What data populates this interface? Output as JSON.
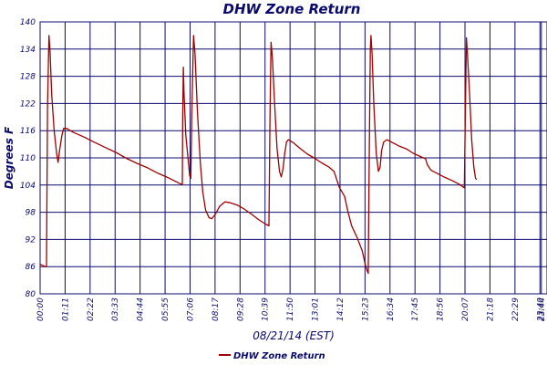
{
  "chart_data": {
    "type": "line",
    "title": "DHW Zone Return",
    "xlabel": "08/21/14 (EST)",
    "ylabel": "Degrees F",
    "ylim": [
      80,
      140
    ],
    "yticks": [
      80,
      86,
      92,
      98,
      104,
      110,
      116,
      122,
      128,
      134,
      140
    ],
    "xlim": [
      0,
      1440
    ],
    "xticks": [
      {
        "label": "00:00",
        "minutes": 0
      },
      {
        "label": "01:11",
        "minutes": 71
      },
      {
        "label": "02:22",
        "minutes": 142
      },
      {
        "label": "03:33",
        "minutes": 213
      },
      {
        "label": "04:44",
        "minutes": 284
      },
      {
        "label": "05:55",
        "minutes": 355
      },
      {
        "label": "07:06",
        "minutes": 426
      },
      {
        "label": "08:17",
        "minutes": 497
      },
      {
        "label": "09:28",
        "minutes": 568
      },
      {
        "label": "10:39",
        "minutes": 639
      },
      {
        "label": "11:50",
        "minutes": 710
      },
      {
        "label": "13:01",
        "minutes": 781
      },
      {
        "label": "14:12",
        "minutes": 852
      },
      {
        "label": "15:23",
        "minutes": 923
      },
      {
        "label": "16:34",
        "minutes": 994
      },
      {
        "label": "17:45",
        "minutes": 1065
      },
      {
        "label": "18:56",
        "minutes": 1136
      },
      {
        "label": "20:07",
        "minutes": 1207
      },
      {
        "label": "21:18",
        "minutes": 1278
      },
      {
        "label": "22:29",
        "minutes": 1349
      },
      {
        "label": "23:40",
        "minutes": 1420
      },
      {
        "label": "23:44",
        "minutes": 1424
      }
    ],
    "grid": true,
    "legend": "bottom",
    "series": [
      {
        "name": "DHW Zone Return",
        "color": "#a00000",
        "points": [
          [
            0,
            86.5
          ],
          [
            15,
            86.0
          ],
          [
            18,
            86.0
          ],
          [
            21,
            121
          ],
          [
            25,
            137
          ],
          [
            28,
            134
          ],
          [
            33,
            124
          ],
          [
            40,
            116
          ],
          [
            47,
            111
          ],
          [
            51,
            109
          ],
          [
            56,
            112
          ],
          [
            62,
            115
          ],
          [
            67,
            116.5
          ],
          [
            75,
            116.5
          ],
          [
            95,
            115.6
          ],
          [
            125,
            114.6
          ],
          [
            155,
            113.4
          ],
          [
            185,
            112.3
          ],
          [
            215,
            111.2
          ],
          [
            245,
            109.9
          ],
          [
            275,
            108.8
          ],
          [
            305,
            107.8
          ],
          [
            335,
            106.6
          ],
          [
            365,
            105.6
          ],
          [
            395,
            104.4
          ],
          [
            404,
            104.1
          ],
          [
            405,
            119
          ],
          [
            407,
            130
          ],
          [
            409,
            124
          ],
          [
            414,
            115
          ],
          [
            420,
            110
          ],
          [
            425,
            106
          ],
          [
            428,
            105.5
          ],
          [
            431,
            120
          ],
          [
            436,
            137
          ],
          [
            440,
            133
          ],
          [
            447,
            120
          ],
          [
            455,
            109
          ],
          [
            462,
            102.5
          ],
          [
            470,
            98.5
          ],
          [
            480,
            96.8
          ],
          [
            488,
            96.6
          ],
          [
            498,
            97.6
          ],
          [
            510,
            99.3
          ],
          [
            525,
            100.3
          ],
          [
            540,
            100.1
          ],
          [
            560,
            99.6
          ],
          [
            580,
            98.7
          ],
          [
            600,
            97.6
          ],
          [
            620,
            96.4
          ],
          [
            640,
            95.4
          ],
          [
            650,
            95.0
          ],
          [
            653,
            118
          ],
          [
            656,
            135.5
          ],
          [
            660,
            132
          ],
          [
            666,
            122
          ],
          [
            673,
            112
          ],
          [
            680,
            107
          ],
          [
            685,
            105.8
          ],
          [
            690,
            107.5
          ],
          [
            695,
            111
          ],
          [
            700,
            113.5
          ],
          [
            705,
            114
          ],
          [
            720,
            113.3
          ],
          [
            740,
            112.0
          ],
          [
            760,
            110.8
          ],
          [
            780,
            109.9
          ],
          [
            800,
            108.9
          ],
          [
            820,
            108.0
          ],
          [
            835,
            107.0
          ],
          [
            850,
            103.5
          ],
          [
            865,
            101.5
          ],
          [
            875,
            98.0
          ],
          [
            885,
            95.0
          ],
          [
            900,
            92.5
          ],
          [
            915,
            89.5
          ],
          [
            925,
            86.0
          ],
          [
            932,
            84.5
          ],
          [
            935,
            110
          ],
          [
            938,
            134
          ],
          [
            940,
            137
          ],
          [
            943,
            133
          ],
          [
            948,
            122
          ],
          [
            955,
            111
          ],
          [
            961,
            107
          ],
          [
            966,
            108
          ],
          [
            970,
            111.5
          ],
          [
            976,
            113.5
          ],
          [
            985,
            114
          ],
          [
            1000,
            113.4
          ],
          [
            1020,
            112.6
          ],
          [
            1040,
            112.0
          ],
          [
            1060,
            111.0
          ],
          [
            1080,
            110.3
          ],
          [
            1095,
            109.8
          ],
          [
            1100,
            108.5
          ],
          [
            1110,
            107.3
          ],
          [
            1130,
            106.5
          ],
          [
            1150,
            105.7
          ],
          [
            1170,
            105.0
          ],
          [
            1190,
            104.2
          ],
          [
            1205,
            103.4
          ],
          [
            1208,
            119
          ],
          [
            1211,
            136.5
          ],
          [
            1214,
            133
          ],
          [
            1220,
            124
          ],
          [
            1226,
            114
          ],
          [
            1232,
            108
          ],
          [
            1237,
            105.5
          ],
          [
            1240,
            105.2
          ]
        ]
      }
    ]
  }
}
